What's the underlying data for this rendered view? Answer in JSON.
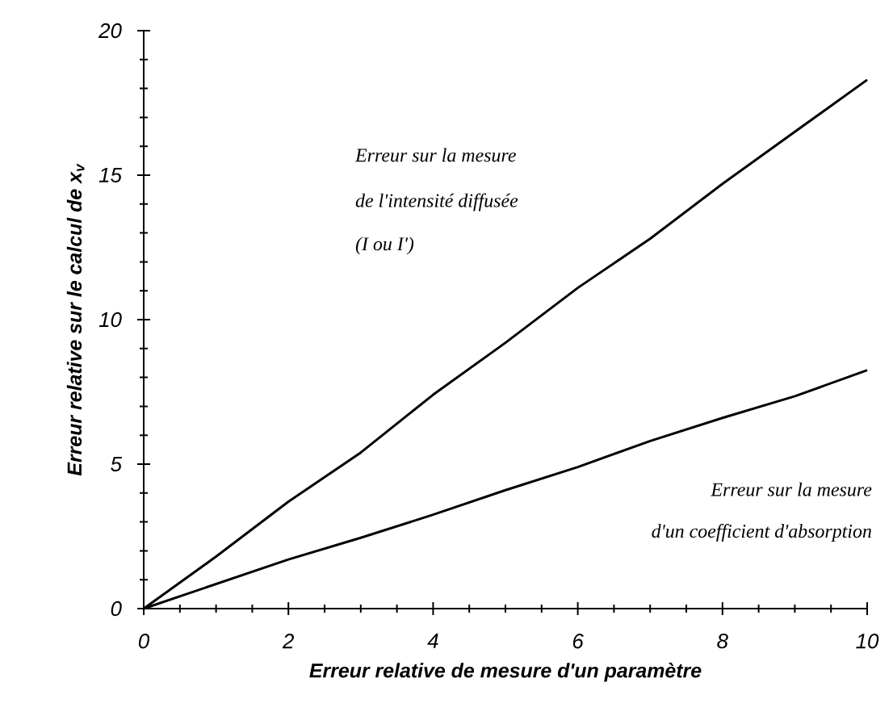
{
  "chart_data": {
    "type": "line",
    "xlabel": "Erreur relative de mesure d'un paramètre",
    "ylabel": "Erreur relative sur le calcul de x$_{v}$",
    "x": [
      0,
      1,
      2,
      3,
      4,
      5,
      6,
      7,
      8,
      9,
      10
    ],
    "series": [
      {
        "color": "#000000",
        "values": [
          0,
          1.8,
          3.7,
          5.4,
          7.4,
          9.2,
          11.1,
          12.8,
          14.7,
          16.5,
          18.3
        ]
      },
      {
        "color": "#000000",
        "values": [
          0,
          0.85,
          1.7,
          2.45,
          3.25,
          4.1,
          4.9,
          5.8,
          6.6,
          7.35,
          8.25
        ]
      }
    ],
    "xlim": [
      0,
      10
    ],
    "ylim": [
      0,
      20
    ],
    "xticks": [
      0,
      2,
      4,
      6,
      8,
      10
    ],
    "yticks": [
      0,
      5,
      10,
      15,
      20
    ],
    "annotations": [
      "Erreur sur la mesure",
      "de l'intensité diffusée",
      "(I ou I')",
      "Erreur sur la mesure",
      "d'un coefficient d'absorption"
    ],
    "marker": "none",
    "line_style": "solid"
  }
}
